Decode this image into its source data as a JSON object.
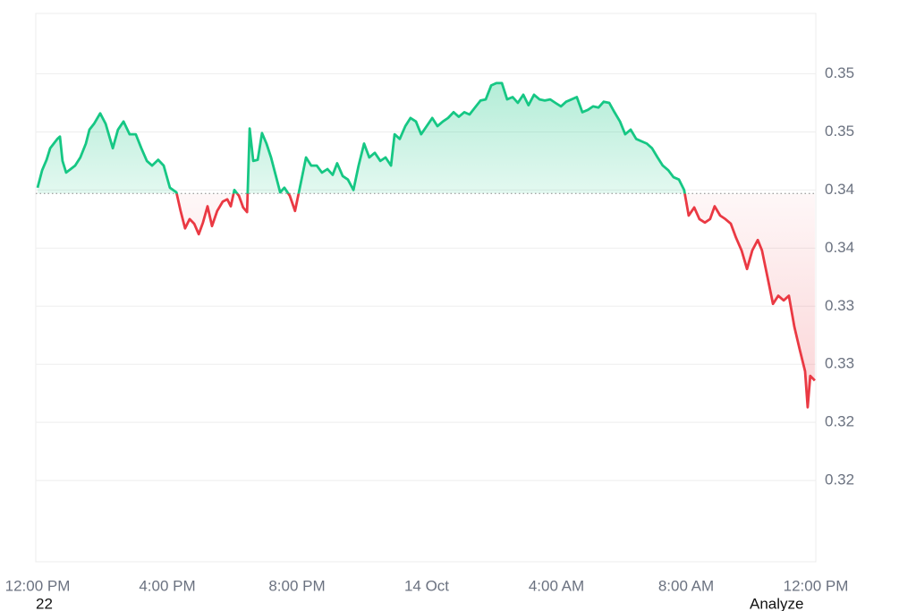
{
  "chart_data": {
    "type": "line",
    "xlim": [
      0,
      24
    ],
    "xticks": [
      {
        "value": 0,
        "label": "12:00 PM"
      },
      {
        "value": 4,
        "label": "4:00 PM"
      },
      {
        "value": 8,
        "label": "8:00 PM"
      },
      {
        "value": 12,
        "label": "14 Oct"
      },
      {
        "value": 16,
        "label": "4:00 AM"
      },
      {
        "value": 20,
        "label": "8:00 AM"
      },
      {
        "value": 24,
        "label": "12:00 PM"
      }
    ],
    "ylim": [
      0.3105,
      0.3577
    ],
    "yticks": [
      {
        "value": 0.3525,
        "label": "0.35"
      },
      {
        "value": 0.3475,
        "label": "0.35"
      },
      {
        "value": 0.3425,
        "label": "0.34"
      },
      {
        "value": 0.3375,
        "label": "0.34"
      },
      {
        "value": 0.3325,
        "label": "0.33"
      },
      {
        "value": 0.3275,
        "label": "0.33"
      },
      {
        "value": 0.3225,
        "label": "0.32"
      },
      {
        "value": 0.3175,
        "label": "0.32"
      }
    ],
    "grid": true,
    "baseline": 0.3422,
    "up_color": "#16c784",
    "down_color": "#ea3943",
    "x": [
      0,
      0.14,
      0.28,
      0.39,
      0.5,
      0.61,
      0.69,
      0.77,
      0.88,
      1.02,
      1.16,
      1.32,
      1.49,
      1.6,
      1.74,
      1.93,
      2.1,
      2.32,
      2.48,
      2.65,
      2.84,
      3.03,
      3.2,
      3.37,
      3.53,
      3.72,
      3.89,
      4.08,
      4.28,
      4.41,
      4.55,
      4.69,
      4.83,
      4.97,
      5.1,
      5.24,
      5.38,
      5.54,
      5.71,
      5.85,
      5.96,
      6.07,
      6.21,
      6.34,
      6.46,
      6.54,
      6.65,
      6.79,
      6.92,
      7.06,
      7.2,
      7.34,
      7.48,
      7.61,
      7.78,
      7.94,
      8.11,
      8.28,
      8.44,
      8.61,
      8.77,
      8.94,
      9.1,
      9.24,
      9.41,
      9.57,
      9.74,
      9.9,
      10.07,
      10.23,
      10.4,
      10.57,
      10.73,
      10.9,
      11.01,
      11.17,
      11.34,
      11.5,
      11.67,
      11.83,
      12.0,
      12.17,
      12.33,
      12.5,
      12.66,
      12.83,
      12.99,
      13.16,
      13.32,
      13.49,
      13.66,
      13.82,
      13.99,
      14.15,
      14.32,
      14.48,
      14.65,
      14.81,
      14.98,
      15.14,
      15.31,
      15.48,
      15.64,
      15.81,
      15.97,
      16.14,
      16.3,
      16.47,
      16.63,
      16.8,
      16.97,
      17.13,
      17.3,
      17.46,
      17.63,
      17.79,
      17.96,
      18.12,
      18.29,
      18.46,
      18.62,
      18.79,
      18.95,
      19.12,
      19.28,
      19.45,
      19.61,
      19.78,
      19.94,
      20.08,
      20.25,
      20.41,
      20.58,
      20.74,
      20.88,
      21.05,
      21.21,
      21.38,
      21.54,
      21.71,
      21.88,
      22.04,
      22.21,
      22.34,
      22.51,
      22.68,
      22.84,
      23.01,
      23.17,
      23.34,
      23.5,
      23.67,
      23.75,
      23.83,
      23.97
    ],
    "values": [
      0.3427,
      0.3442,
      0.3451,
      0.3461,
      0.3465,
      0.3469,
      0.3471,
      0.345,
      0.344,
      0.3443,
      0.3446,
      0.3453,
      0.3465,
      0.3477,
      0.3482,
      0.3491,
      0.3482,
      0.3461,
      0.3477,
      0.3484,
      0.3473,
      0.3473,
      0.3461,
      0.345,
      0.3446,
      0.3451,
      0.3446,
      0.3427,
      0.3423,
      0.3407,
      0.3392,
      0.34,
      0.3396,
      0.3387,
      0.3397,
      0.3411,
      0.3394,
      0.3407,
      0.3415,
      0.3417,
      0.3411,
      0.3425,
      0.342,
      0.341,
      0.3406,
      0.3478,
      0.345,
      0.3451,
      0.3474,
      0.3465,
      0.3453,
      0.3438,
      0.3423,
      0.3427,
      0.342,
      0.3407,
      0.343,
      0.3453,
      0.3446,
      0.3446,
      0.344,
      0.3443,
      0.3438,
      0.3448,
      0.3437,
      0.3434,
      0.3425,
      0.3446,
      0.3465,
      0.3453,
      0.3457,
      0.345,
      0.3453,
      0.3446,
      0.3473,
      0.3469,
      0.348,
      0.3487,
      0.3484,
      0.3473,
      0.348,
      0.3487,
      0.348,
      0.3484,
      0.3487,
      0.3492,
      0.3488,
      0.3492,
      0.349,
      0.3496,
      0.3502,
      0.3503,
      0.3515,
      0.3517,
      0.3517,
      0.3503,
      0.3505,
      0.35,
      0.3507,
      0.3498,
      0.3507,
      0.3503,
      0.3502,
      0.3503,
      0.35,
      0.3497,
      0.3501,
      0.3503,
      0.3505,
      0.3492,
      0.3494,
      0.3497,
      0.3496,
      0.3501,
      0.35,
      0.3492,
      0.3484,
      0.3473,
      0.3477,
      0.3469,
      0.3467,
      0.3465,
      0.3461,
      0.3453,
      0.3446,
      0.3442,
      0.3436,
      0.3434,
      0.3425,
      0.3403,
      0.341,
      0.34,
      0.3397,
      0.34,
      0.3411,
      0.3403,
      0.34,
      0.3396,
      0.3384,
      0.3373,
      0.3357,
      0.3373,
      0.3382,
      0.3373,
      0.335,
      0.3327,
      0.3334,
      0.333,
      0.3334,
      0.3307,
      0.3288,
      0.3269,
      0.3238,
      0.3265,
      0.3261
    ],
    "footer_left": "22",
    "footer_right": "Analyze"
  }
}
